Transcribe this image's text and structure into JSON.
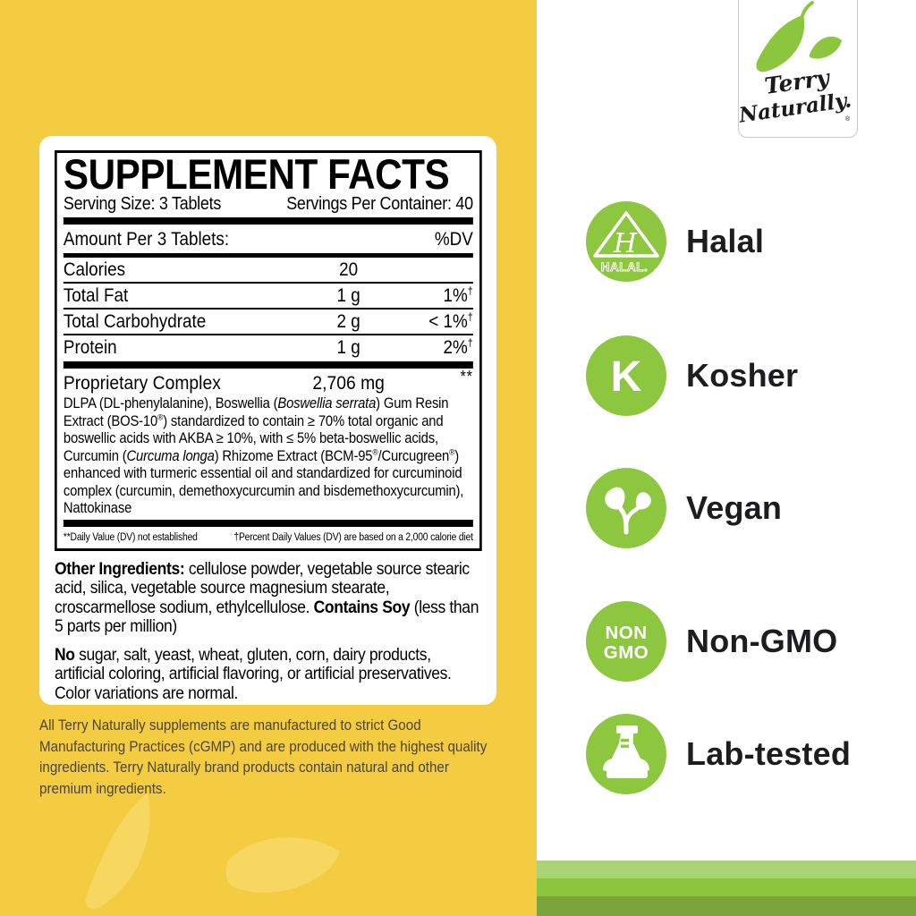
{
  "brand": {
    "line1": "Terry",
    "line2": "Naturally.",
    "reg": "®"
  },
  "facts": {
    "title": "SUPPLEMENT FACTS",
    "serving_size": "Serving Size: 3 Tablets",
    "servings_per_container": "Servings Per Container: 40",
    "amount_header": "Amount Per 3 Tablets:",
    "dv_header": "%DV",
    "dagger": "†",
    "rows": [
      {
        "name": "Calories",
        "amount": "20",
        "dv": "",
        "dagger": false
      },
      {
        "name": "Total Fat",
        "amount": "1 g",
        "dv": "1%",
        "dagger": true
      },
      {
        "name": "Total Carbohydrate",
        "amount": "2 g",
        "dv": "< 1%",
        "dagger": true
      },
      {
        "name": "Protein",
        "amount": "1 g",
        "dv": "2%",
        "dagger": true
      }
    ],
    "proprietary": {
      "name": "Proprietary Complex",
      "amount": "2,706 mg",
      "dv": "**",
      "description": [
        {
          "t": "DLPA (DL-phenylalanine), Boswellia ("
        },
        {
          "t": "Boswellia serrata",
          "i": true
        },
        {
          "t": ") Gum Resin Extract (BOS-10"
        },
        {
          "t": "®",
          "sup": true
        },
        {
          "t": ") standardized to contain ≥ 70% total organic and boswellic acids with AKBA ≥ 10%, with ≤ 5% beta-boswellic acids, Curcumin ("
        },
        {
          "t": "Curcuma longa",
          "i": true
        },
        {
          "t": ") Rhizome Extract (BCM-95"
        },
        {
          "t": "®",
          "sup": true
        },
        {
          "t": "/Curcugreen"
        },
        {
          "t": "®",
          "sup": true
        },
        {
          "t": ") enhanced with turmeric essential oil and standardized for curcuminoid complex (curcumin, demethoxycurcumin and bisdemethoxycurcumin), Nattokinase"
        }
      ]
    },
    "footnote_left": "**Daily Value (DV) not established",
    "footnote_right": "†Percent Daily Values (DV) are based on a 2,000 calorie diet"
  },
  "other_ingredients": [
    {
      "t": "Other Ingredients:",
      "b": true
    },
    {
      "t": " cellulose powder, vegetable source stearic acid, silica, vegetable source magnesium stearate, croscarmellose sodium, ethylcellulose. "
    },
    {
      "t": "Contains Soy",
      "b": true
    },
    {
      "t": " (less than 5 parts per million)"
    }
  ],
  "no_statement": [
    {
      "t": "No",
      "b": true
    },
    {
      "t": " sugar, salt, yeast, wheat, gluten, corn, dairy products, artificial coloring, artificial flavoring, or artificial preservatives. Color variations are normal."
    }
  ],
  "cgmp_note": "All Terry Naturally supplements are manufactured to strict Good Manufacturing Practices (cGMP) and are produced with the highest quality ingredients. Terry Naturally brand products contain natural and other premium ingredients.",
  "badges": [
    {
      "label": "Halal",
      "icon": "halal-seal-icon",
      "icon_letter": "H",
      "icon_text": "HALAL.",
      "reg": "®"
    },
    {
      "label": "Kosher",
      "icon": "kosher-k-icon",
      "icon_letter": "K"
    },
    {
      "label": "Vegan",
      "icon": "vegan-sprout-icon"
    },
    {
      "label": "Non-GMO",
      "icon": "non-gmo-icon",
      "line1": "NON",
      "line2": "GMO"
    },
    {
      "label": "Lab-tested",
      "icon": "lab-flask-icon"
    }
  ],
  "colors": {
    "yellow_bg": "#F4CC41",
    "leaf_watermark": "#F7D75F",
    "badge_green": "#8DC63F",
    "stripe_light": "#A9D374",
    "stripe_mid": "#8CC63F",
    "stripe_dark": "#7CA43C",
    "text_dark": "#1D1D1F"
  }
}
